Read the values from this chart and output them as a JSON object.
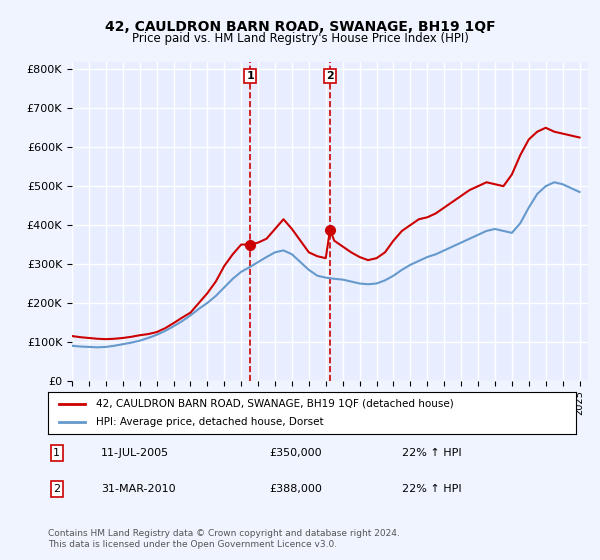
{
  "title": "42, CAULDRON BARN ROAD, SWANAGE, BH19 1QF",
  "subtitle": "Price paid vs. HM Land Registry's House Price Index (HPI)",
  "background_color": "#f0f4ff",
  "plot_bg_color": "#e8eeff",
  "grid_color": "#ffffff",
  "sale1_date": 2005.53,
  "sale1_price": 350000,
  "sale1_label": "1",
  "sale2_date": 2010.25,
  "sale2_price": 388000,
  "sale2_label": "2",
  "xmin": 1995,
  "xmax": 2025.5,
  "ymin": 0,
  "ymax": 820000,
  "yticks": [
    0,
    100000,
    200000,
    300000,
    400000,
    500000,
    600000,
    700000,
    800000
  ],
  "ytick_labels": [
    "£0",
    "£100K",
    "£200K",
    "£300K",
    "£400K",
    "£500K",
    "£600K",
    "£700K",
    "£800K"
  ],
  "xticks": [
    1995,
    1996,
    1997,
    1998,
    1999,
    2000,
    2001,
    2002,
    2003,
    2004,
    2005,
    2006,
    2007,
    2008,
    2009,
    2010,
    2011,
    2012,
    2013,
    2014,
    2015,
    2016,
    2017,
    2018,
    2019,
    2020,
    2021,
    2022,
    2023,
    2024,
    2025
  ],
  "red_line_color": "#cc0000",
  "blue_line_color": "#6699cc",
  "vline_color": "#cc0000",
  "legend_box_color": "#ffffff",
  "legend_red_label": "42, CAULDRON BARN ROAD, SWANAGE, BH19 1QF (detached house)",
  "legend_blue_label": "HPI: Average price, detached house, Dorset",
  "table_row1": [
    "1",
    "11-JUL-2005",
    "£350,000",
    "22% ↑ HPI"
  ],
  "table_row2": [
    "2",
    "31-MAR-2010",
    "£388,000",
    "22% ↑ HPI"
  ],
  "footer": "Contains HM Land Registry data © Crown copyright and database right 2024.\nThis data is licensed under the Open Government Licence v3.0.",
  "red_x": [
    1995.0,
    1995.5,
    1996.0,
    1996.5,
    1997.0,
    1997.5,
    1998.0,
    1998.5,
    1999.0,
    1999.5,
    2000.0,
    2000.5,
    2001.0,
    2001.5,
    2002.0,
    2002.5,
    2003.0,
    2003.5,
    2004.0,
    2004.5,
    2005.0,
    2005.53,
    2006.0,
    2006.5,
    2007.0,
    2007.5,
    2008.0,
    2008.5,
    2009.0,
    2009.5,
    2010.0,
    2010.25,
    2010.5,
    2011.0,
    2011.5,
    2012.0,
    2012.5,
    2013.0,
    2013.5,
    2014.0,
    2014.5,
    2015.0,
    2015.5,
    2016.0,
    2016.5,
    2017.0,
    2017.5,
    2018.0,
    2018.5,
    2019.0,
    2019.5,
    2020.0,
    2020.5,
    2021.0,
    2021.5,
    2022.0,
    2022.5,
    2023.0,
    2023.5,
    2024.0,
    2024.5,
    2025.0
  ],
  "red_y": [
    115000,
    112000,
    110000,
    108000,
    107000,
    108000,
    110000,
    113000,
    117000,
    120000,
    125000,
    135000,
    148000,
    162000,
    175000,
    200000,
    225000,
    255000,
    295000,
    325000,
    350000,
    350000,
    355000,
    365000,
    390000,
    415000,
    390000,
    360000,
    330000,
    320000,
    315000,
    388000,
    360000,
    345000,
    330000,
    318000,
    310000,
    315000,
    330000,
    360000,
    385000,
    400000,
    415000,
    420000,
    430000,
    445000,
    460000,
    475000,
    490000,
    500000,
    510000,
    505000,
    500000,
    530000,
    580000,
    620000,
    640000,
    650000,
    640000,
    635000,
    630000,
    625000
  ],
  "blue_x": [
    1995.0,
    1995.5,
    1996.0,
    1996.5,
    1997.0,
    1997.5,
    1998.0,
    1998.5,
    1999.0,
    1999.5,
    2000.0,
    2000.5,
    2001.0,
    2001.5,
    2002.0,
    2002.5,
    2003.0,
    2003.5,
    2004.0,
    2004.5,
    2005.0,
    2005.5,
    2006.0,
    2006.5,
    2007.0,
    2007.5,
    2008.0,
    2008.5,
    2009.0,
    2009.5,
    2010.0,
    2010.5,
    2011.0,
    2011.5,
    2012.0,
    2012.5,
    2013.0,
    2013.5,
    2014.0,
    2014.5,
    2015.0,
    2015.5,
    2016.0,
    2016.5,
    2017.0,
    2017.5,
    2018.0,
    2018.5,
    2019.0,
    2019.5,
    2020.0,
    2020.5,
    2021.0,
    2021.5,
    2022.0,
    2022.5,
    2023.0,
    2023.5,
    2024.0,
    2024.5,
    2025.0
  ],
  "blue_y": [
    90000,
    88000,
    87000,
    86000,
    87000,
    90000,
    94000,
    98000,
    103000,
    110000,
    118000,
    128000,
    140000,
    153000,
    168000,
    185000,
    200000,
    218000,
    240000,
    262000,
    280000,
    292000,
    305000,
    318000,
    330000,
    335000,
    325000,
    305000,
    285000,
    270000,
    265000,
    262000,
    260000,
    255000,
    250000,
    248000,
    250000,
    258000,
    270000,
    285000,
    298000,
    308000,
    318000,
    325000,
    335000,
    345000,
    355000,
    365000,
    375000,
    385000,
    390000,
    385000,
    380000,
    405000,
    445000,
    480000,
    500000,
    510000,
    505000,
    495000,
    485000
  ]
}
